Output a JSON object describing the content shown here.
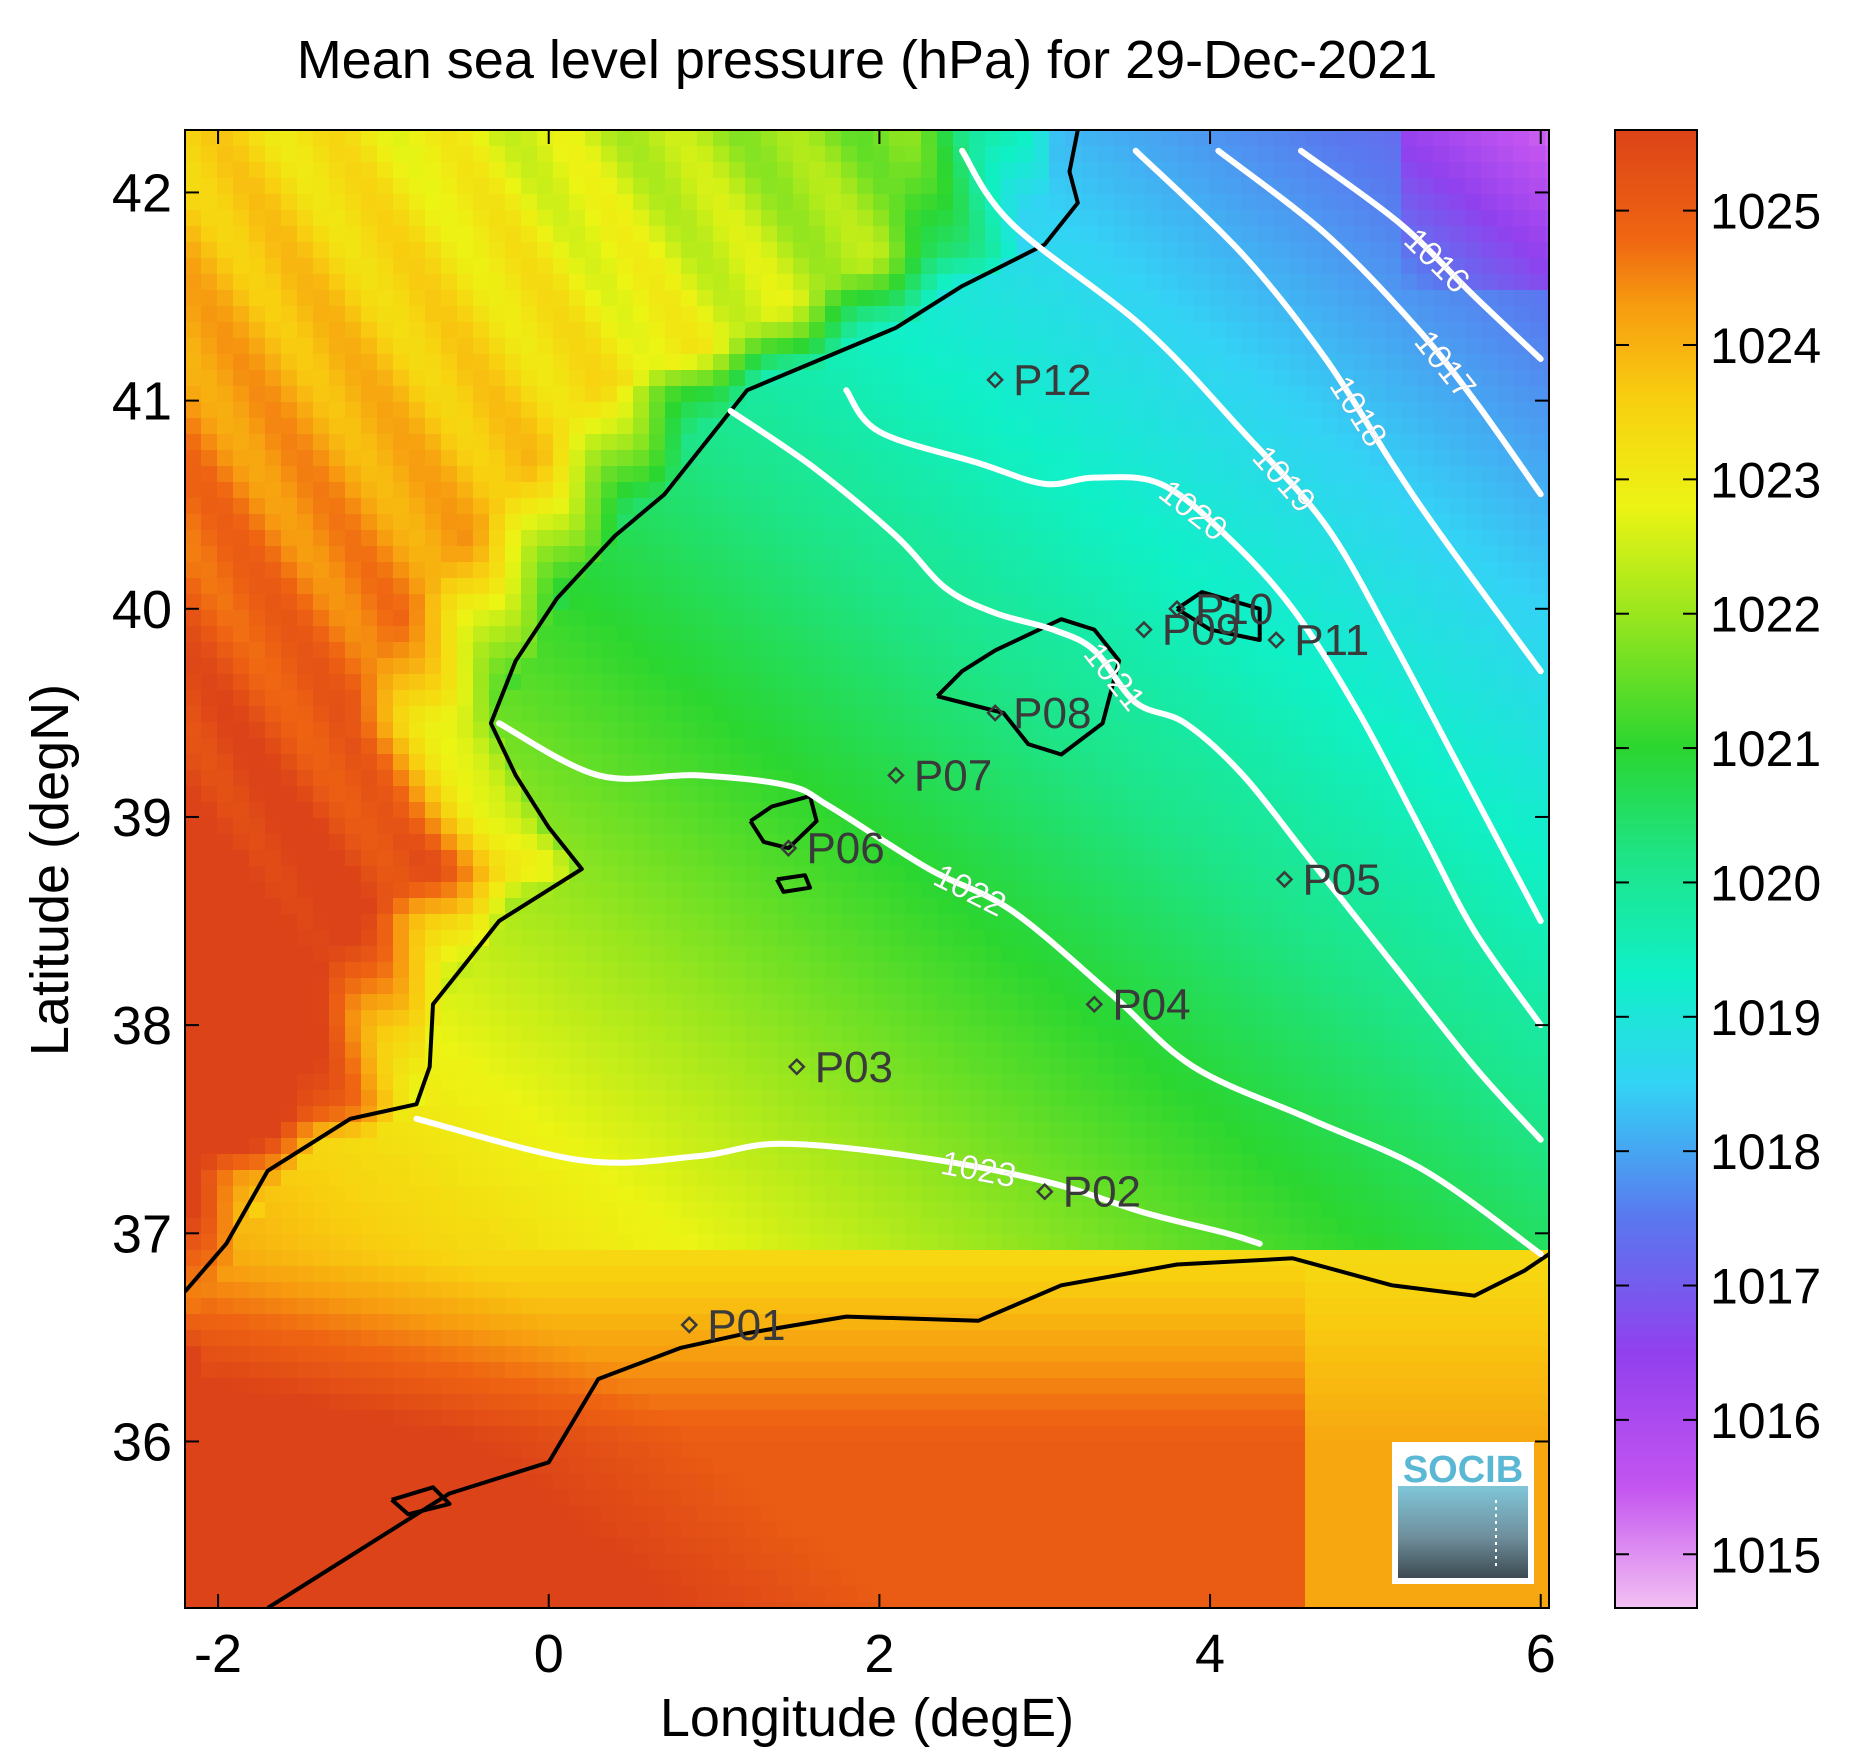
{
  "chart_data": {
    "type": "heatmap",
    "title": "Mean sea level pressure (hPa) for 29-Dec-2021",
    "xlabel": "Longitude (degE)",
    "ylabel": "Latitude (degN)",
    "xlim": [
      -2.2,
      6.05
    ],
    "ylim": [
      35.2,
      42.3
    ],
    "x_ticks": [
      -2,
      0,
      2,
      4,
      6
    ],
    "y_ticks": [
      36,
      37,
      38,
      39,
      40,
      41,
      42
    ],
    "colorbar": {
      "range": [
        1014.6,
        1025.6
      ],
      "ticks": [
        1015,
        1016,
        1017,
        1018,
        1019,
        1020,
        1021,
        1022,
        1023,
        1024,
        1025
      ],
      "colors": [
        {
          "value": 1014.6,
          "color": "#f3c0f3"
        },
        {
          "value": 1015.5,
          "color": "#c455f0"
        },
        {
          "value": 1016.5,
          "color": "#9140ee"
        },
        {
          "value": 1017.5,
          "color": "#5a78ef"
        },
        {
          "value": 1018.5,
          "color": "#33d3f5"
        },
        {
          "value": 1019.3,
          "color": "#10f0c8"
        },
        {
          "value": 1020.2,
          "color": "#1ee486"
        },
        {
          "value": 1021.0,
          "color": "#2bd630"
        },
        {
          "value": 1022.0,
          "color": "#9ae61e"
        },
        {
          "value": 1022.8,
          "color": "#ecf414"
        },
        {
          "value": 1023.6,
          "color": "#f8cf10"
        },
        {
          "value": 1024.3,
          "color": "#f79b10"
        },
        {
          "value": 1024.8,
          "color": "#ef6512"
        },
        {
          "value": 1025.6,
          "color": "#dc4318"
        }
      ]
    },
    "contours": [
      {
        "level": 1016,
        "label": "1016",
        "points": [
          [
            4.55,
            42.2
          ],
          [
            5.15,
            41.85
          ],
          [
            5.6,
            41.5
          ],
          [
            6.0,
            41.2
          ]
        ]
      },
      {
        "level": 1017,
        "label": "1017",
        "points": [
          [
            4.05,
            42.2
          ],
          [
            4.7,
            41.8
          ],
          [
            5.25,
            41.35
          ],
          [
            5.6,
            41.0
          ],
          [
            6.0,
            40.55
          ]
        ]
      },
      {
        "level": 1018,
        "label": "1018",
        "points": [
          [
            3.55,
            42.2
          ],
          [
            4.2,
            41.7
          ],
          [
            4.7,
            41.2
          ],
          [
            5.1,
            40.7
          ],
          [
            5.4,
            40.35
          ],
          [
            6.0,
            39.7
          ]
        ]
      },
      {
        "level": 1019,
        "label": "1019",
        "points": [
          [
            2.5,
            42.2
          ],
          [
            2.8,
            41.85
          ],
          [
            3.6,
            41.35
          ],
          [
            4.2,
            40.85
          ],
          [
            4.7,
            40.4
          ],
          [
            5.1,
            39.85
          ],
          [
            5.5,
            39.25
          ],
          [
            6.0,
            38.5
          ]
        ]
      },
      {
        "level": 1020,
        "label": "1020",
        "points": [
          [
            1.8,
            41.05
          ],
          [
            2.0,
            40.85
          ],
          [
            2.6,
            40.7
          ],
          [
            3.0,
            40.6
          ],
          [
            3.3,
            40.63
          ],
          [
            3.7,
            40.6
          ],
          [
            4.1,
            40.35
          ],
          [
            4.5,
            40.0
          ],
          [
            4.9,
            39.5
          ],
          [
            5.3,
            38.9
          ],
          [
            5.6,
            38.45
          ],
          [
            6.0,
            38.0
          ]
        ]
      },
      {
        "level": 1021,
        "label": "1021",
        "points": [
          [
            1.1,
            40.95
          ],
          [
            1.6,
            40.68
          ],
          [
            2.1,
            40.35
          ],
          [
            2.4,
            40.1
          ],
          [
            2.7,
            39.98
          ],
          [
            3.05,
            39.9
          ],
          [
            3.3,
            39.8
          ],
          [
            3.55,
            39.55
          ],
          [
            3.85,
            39.45
          ],
          [
            4.2,
            39.2
          ],
          [
            4.6,
            38.8
          ],
          [
            5.1,
            38.3
          ],
          [
            5.6,
            37.8
          ],
          [
            6.0,
            37.45
          ]
        ]
      },
      {
        "level": 1022,
        "label": "1022",
        "points": [
          [
            -0.3,
            39.45
          ],
          [
            0.3,
            39.2
          ],
          [
            0.9,
            39.2
          ],
          [
            1.45,
            39.15
          ],
          [
            1.7,
            39.05
          ],
          [
            2.3,
            38.75
          ],
          [
            2.8,
            38.55
          ],
          [
            3.4,
            38.15
          ],
          [
            3.9,
            37.8
          ],
          [
            4.6,
            37.55
          ],
          [
            5.3,
            37.3
          ],
          [
            6.0,
            36.9
          ]
        ]
      },
      {
        "level": 1023,
        "label": "1023",
        "points": [
          [
            -0.8,
            37.55
          ],
          [
            0.2,
            37.35
          ],
          [
            0.9,
            37.37
          ],
          [
            1.4,
            37.43
          ],
          [
            2.2,
            37.37
          ],
          [
            3.0,
            37.25
          ],
          [
            3.6,
            37.1
          ],
          [
            4.1,
            37.0
          ],
          [
            4.3,
            36.95
          ]
        ]
      }
    ],
    "stations": [
      {
        "name": "P01",
        "lon": 0.85,
        "lat": 36.56
      },
      {
        "name": "P02",
        "lon": 3.0,
        "lat": 37.2
      },
      {
        "name": "P03",
        "lon": 1.5,
        "lat": 37.8
      },
      {
        "name": "P04",
        "lon": 3.3,
        "lat": 38.1
      },
      {
        "name": "P05",
        "lon": 4.45,
        "lat": 38.7
      },
      {
        "name": "P06",
        "lon": 1.45,
        "lat": 38.85
      },
      {
        "name": "P07",
        "lon": 2.1,
        "lat": 39.2
      },
      {
        "name": "P08",
        "lon": 2.7,
        "lat": 39.5
      },
      {
        "name": "P09",
        "lon": 3.6,
        "lat": 39.9
      },
      {
        "name": "P10",
        "lon": 3.8,
        "lat": 40.0
      },
      {
        "name": "P11",
        "lon": 4.4,
        "lat": 39.85
      },
      {
        "name": "P12",
        "lon": 2.7,
        "lat": 41.1
      }
    ]
  },
  "logo": {
    "text": "SOCIB",
    "color": "#5bb8d4"
  }
}
